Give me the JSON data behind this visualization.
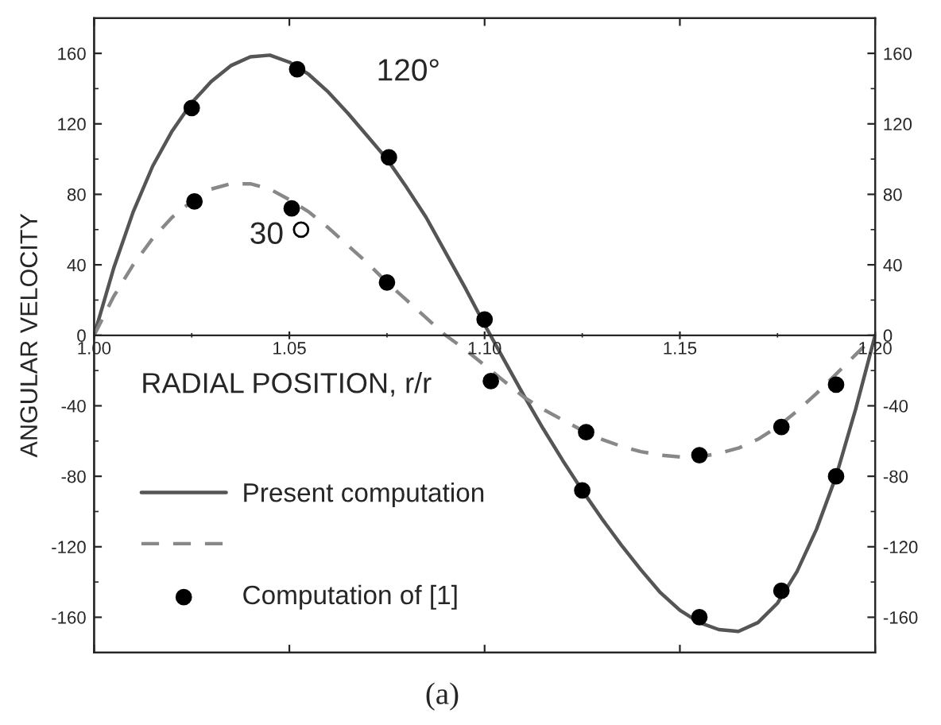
{
  "chart_data": {
    "type": "line",
    "xlabel": "RADIAL POSITION, r/r",
    "ylabel": "ANGULAR VELOCITY",
    "annotations": [
      "120°",
      "30",
      "(a)"
    ],
    "xlim": [
      1.0,
      1.2
    ],
    "xticks": [
      {
        "value": 1.0,
        "label": "1.00"
      },
      1.05,
      {
        "value": 1.1,
        "label": "1.10"
      },
      1.15,
      {
        "value": 1.2,
        "label": "1.20"
      }
    ],
    "ylim": [
      -180,
      180
    ],
    "yticks": [
      -160,
      -120,
      -80,
      -40,
      0,
      40,
      80,
      120,
      160
    ],
    "y2lim": [
      -180,
      180
    ],
    "y2ticks": [
      -160,
      -120,
      -80,
      -40,
      0,
      40,
      80,
      120,
      160
    ],
    "grid": false,
    "legend": "bottom left",
    "series": [
      {
        "name": "Present computation",
        "line_style": "solid",
        "color": "#555555",
        "x": [
          1.0,
          1.005,
          1.01,
          1.015,
          1.02,
          1.025,
          1.03,
          1.035,
          1.04,
          1.045,
          1.05,
          1.055,
          1.06,
          1.065,
          1.07,
          1.075,
          1.08,
          1.085,
          1.09,
          1.095,
          1.1,
          1.105,
          1.11,
          1.115,
          1.12,
          1.125,
          1.13,
          1.135,
          1.14,
          1.145,
          1.15,
          1.155,
          1.16,
          1.165,
          1.17,
          1.175,
          1.18,
          1.185,
          1.19,
          1.195,
          1.2
        ],
        "values": [
          0,
          38,
          70,
          96,
          116,
          132,
          144,
          153,
          158,
          159,
          155,
          148,
          138,
          126,
          113,
          100,
          84,
          67,
          47,
          27,
          6,
          -14,
          -34,
          -53,
          -71,
          -88,
          -104,
          -119,
          -133,
          -146,
          -156,
          -163,
          -167,
          -168,
          -163,
          -152,
          -134,
          -110,
          -80,
          -42,
          0
        ]
      },
      {
        "line_style": "dashed",
        "color": "#888888",
        "x": [
          1.0,
          1.005,
          1.01,
          1.015,
          1.02,
          1.025,
          1.03,
          1.035,
          1.04,
          1.045,
          1.05,
          1.055,
          1.06,
          1.065,
          1.07,
          1.075,
          1.08,
          1.085,
          1.09,
          1.095,
          1.1,
          1.105,
          1.11,
          1.115,
          1.12,
          1.125,
          1.13,
          1.135,
          1.14,
          1.145,
          1.15,
          1.155,
          1.16,
          1.165,
          1.17,
          1.175,
          1.18,
          1.185,
          1.19,
          1.195,
          1.2
        ],
        "values": [
          0,
          22,
          40,
          55,
          67,
          76,
          83,
          86,
          86,
          83,
          77,
          70,
          61,
          51,
          41,
          30,
          20,
          10,
          0,
          -8,
          -17,
          -26,
          -35,
          -42,
          -48,
          -54,
          -59,
          -63,
          -66,
          -68,
          -69,
          -69,
          -67,
          -64,
          -59,
          -52,
          -43,
          -33,
          -22,
          -11,
          0
        ]
      },
      {
        "name": "Computation of [1]",
        "type": "scatter",
        "marker": "circle",
        "color": "#000000",
        "x": [
          1.025,
          1.052,
          1.0755,
          1.1,
          1.125,
          1.155,
          1.176,
          1.19,
          1.0257,
          1.0506,
          1.075,
          1.1016,
          1.126,
          1.155,
          1.176,
          1.19
        ],
        "values": [
          129,
          151,
          101,
          9,
          -88,
          -160,
          -145,
          -80,
          76,
          72,
          30,
          -26,
          -55,
          -68,
          -52,
          -28
        ]
      },
      {
        "type": "scatter",
        "marker": "circle",
        "color": "#ffffff",
        "x": [
          1.053
        ],
        "values": [
          60
        ]
      }
    ]
  }
}
